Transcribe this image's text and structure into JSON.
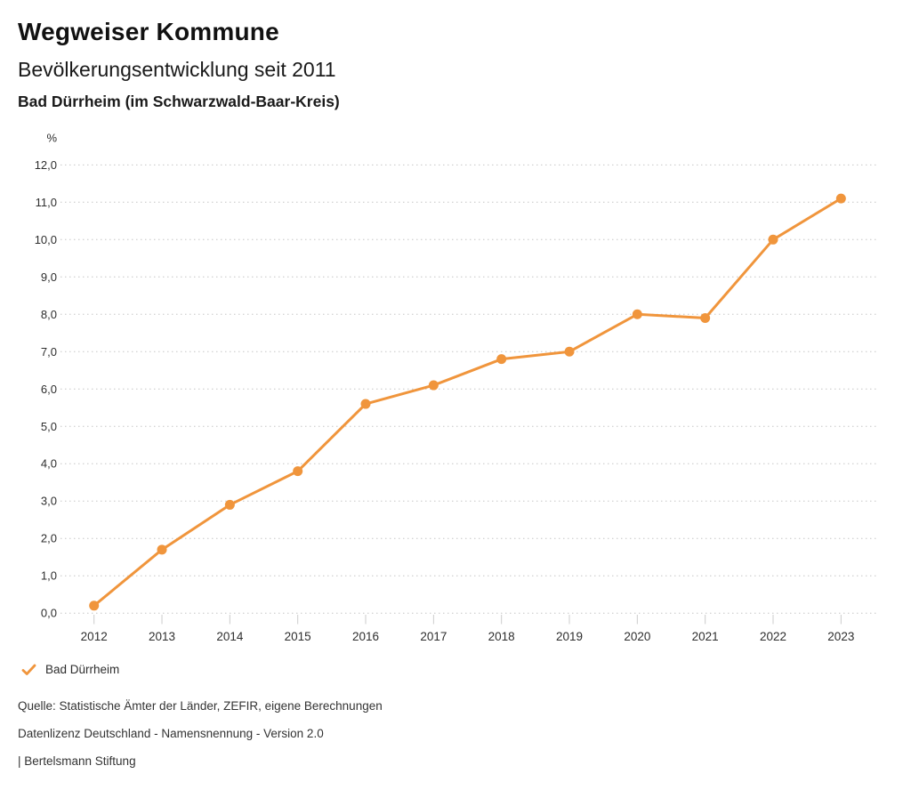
{
  "header": {
    "title": "Wegweiser Kommune",
    "subtitle": "Bevölkerungsentwicklung seit 2011",
    "region": "Bad Dürrheim (im Schwarzwald-Baar-Kreis)"
  },
  "chart_data": {
    "type": "line",
    "title": "Bevölkerungsentwicklung seit 2011",
    "unit_label": "%",
    "categories": [
      "2012",
      "2013",
      "2014",
      "2015",
      "2016",
      "2017",
      "2018",
      "2019",
      "2020",
      "2021",
      "2022",
      "2023"
    ],
    "series": [
      {
        "name": "Bad Dürrheim",
        "values": [
          0.2,
          1.7,
          2.9,
          3.8,
          5.6,
          6.1,
          6.8,
          7.0,
          8.0,
          7.9,
          10.0,
          11.1
        ],
        "color": "#F0953C"
      }
    ],
    "ylim": [
      0,
      12
    ],
    "ytick_step": 1,
    "ytick_labels": [
      "0,0",
      "1,0",
      "2,0",
      "3,0",
      "4,0",
      "5,0",
      "6,0",
      "7,0",
      "8,0",
      "9,0",
      "10,0",
      "11,0",
      "12,0"
    ],
    "grid": "horizontal-dotted",
    "legend_position": "bottom-left"
  },
  "legend": {
    "items": [
      {
        "label": "Bad Dürrheim",
        "color": "#F0953C",
        "marker": "check-icon"
      }
    ]
  },
  "footer": {
    "source": "Quelle: Statistische Ämter der Länder, ZEFIR, eigene Berechnungen",
    "license": "Datenlizenz Deutschland - Namensnennung - Version 2.0",
    "attribution": "| Bertelsmann Stiftung"
  },
  "colors": {
    "accent": "#F0953C",
    "grid": "#C6C6C6",
    "tick": "#CCCCCC",
    "axis_text": "#2E2E2E",
    "footer_text": "#333333"
  }
}
